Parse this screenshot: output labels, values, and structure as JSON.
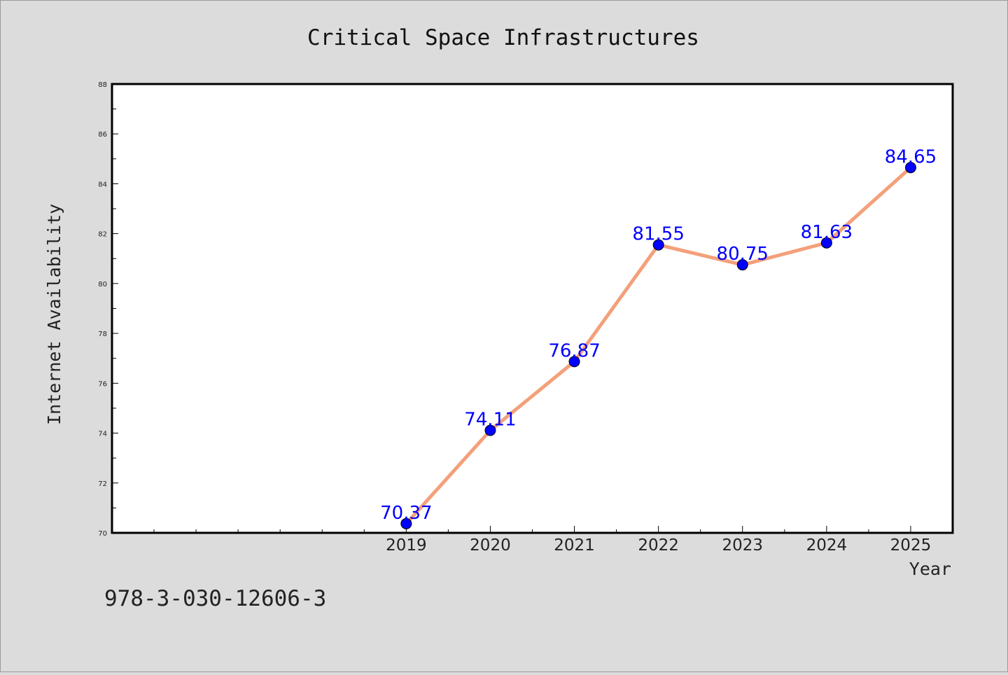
{
  "chart_data": {
    "type": "line",
    "title": "Critical Space Infrastructures",
    "xlabel": "Year",
    "ylabel": "Internet Availability",
    "x": [
      "2019",
      "2020",
      "2021",
      "2022",
      "2023",
      "2024",
      "2025"
    ],
    "series": [
      {
        "values": [
          70.37,
          74.11,
          76.87,
          81.55,
          80.75,
          81.63,
          84.65
        ],
        "labels": [
          "70.37",
          "74.11",
          "76.87",
          "81.55",
          "80.75",
          "81.63",
          "84.65"
        ]
      }
    ],
    "ylim": [
      70,
      88
    ],
    "xlim": [
      2015.5,
      2025.5
    ],
    "yticks": [
      70,
      72,
      74,
      76,
      78,
      80,
      82,
      84,
      86,
      88
    ],
    "ytick_labels": [
      "70",
      "72",
      "74",
      "76",
      "78",
      "80",
      "82",
      "84",
      "86",
      "88"
    ],
    "grid": false,
    "legend": "none",
    "line_color": "#f4a07a",
    "marker_color": "#0000ff",
    "label_color": "#0000ff"
  },
  "footer": {
    "isbn": "978-3-030-12606-3"
  }
}
